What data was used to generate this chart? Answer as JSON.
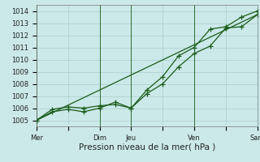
{
  "xlabel": "Pression niveau de la mer( hPa )",
  "ylim": [
    1004.5,
    1014.5
  ],
  "yticks": [
    1005,
    1006,
    1007,
    1008,
    1009,
    1010,
    1011,
    1012,
    1013,
    1014
  ],
  "bg_color": "#cce9e9",
  "grid_color": "#aacece",
  "line_color": "#1a5c1a",
  "vline_color": "#2d6e2d",
  "xtick_labels": [
    "Mer",
    "",
    "Dim",
    "Jeu",
    "",
    "Ven",
    "",
    "Sam"
  ],
  "xtick_positions": [
    0,
    1,
    2,
    3,
    4,
    5,
    6,
    7
  ],
  "vlines": [
    0,
    2,
    3,
    5,
    7
  ],
  "line1_x": [
    0,
    0.5,
    1.0,
    1.5,
    2.0,
    2.5,
    3.0,
    3.5,
    4.0,
    4.5,
    5.0,
    5.5,
    6.0,
    6.5,
    7.0
  ],
  "line1_y": [
    1005.0,
    1005.9,
    1006.1,
    1006.0,
    1006.2,
    1006.3,
    1006.0,
    1007.2,
    1008.0,
    1009.4,
    1010.5,
    1011.1,
    1012.6,
    1012.7,
    1013.7
  ],
  "line2_x": [
    0,
    0.5,
    1.0,
    1.5,
    2.0,
    2.5,
    3.0,
    3.5,
    4.0,
    4.5,
    5.0,
    5.5,
    6.0,
    6.5,
    7.0
  ],
  "line2_y": [
    1005.0,
    1005.7,
    1005.9,
    1005.7,
    1006.0,
    1006.5,
    1006.0,
    1007.5,
    1008.6,
    1010.3,
    1011.0,
    1012.5,
    1012.7,
    1013.5,
    1014.0
  ],
  "line3_x": [
    0,
    7
  ],
  "line3_y": [
    1005.0,
    1013.7
  ],
  "marker_size": 2.8,
  "font_color": "#222222",
  "tick_fontsize": 6.0,
  "xlabel_fontsize": 7.5
}
